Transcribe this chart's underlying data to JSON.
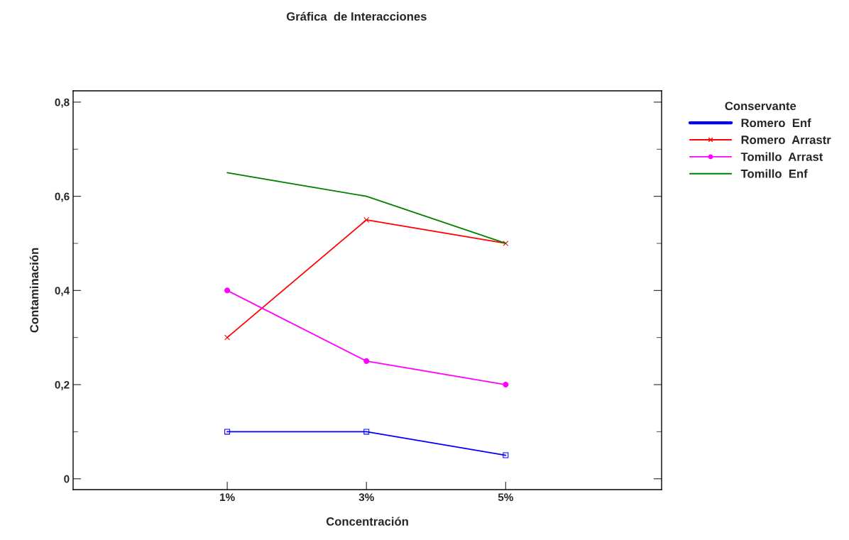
{
  "chart_data": {
    "type": "line",
    "title": "Gráfica  de Interacciones",
    "xlabel": "Concentración",
    "ylabel": "Contaminación",
    "legend_title": "Conservante",
    "categories": [
      "1%",
      "3%",
      "5%"
    ],
    "series": [
      {
        "name": "Romero  Enf",
        "color": "#0000ff",
        "values": [
          0.1,
          0.1,
          0.05
        ],
        "marker": "square"
      },
      {
        "name": "Romero  Arrastr",
        "color": "#ff0000",
        "values": [
          0.3,
          0.55,
          0.5
        ],
        "marker": "cross"
      },
      {
        "name": "Tomillo  Arrast",
        "color": "#ff00ff",
        "values": [
          0.4,
          0.25,
          0.2
        ],
        "marker": "circle"
      },
      {
        "name": "Tomillo  Enf",
        "color": "#008000",
        "values": [
          0.65,
          0.6,
          0.5
        ],
        "marker": "none"
      }
    ],
    "ylim": [
      -0.023,
      0.824
    ],
    "yticks": [
      {
        "value": 0,
        "label": "0"
      },
      {
        "value": 0.2,
        "label": "0,2"
      },
      {
        "value": 0.4,
        "label": "0,4"
      },
      {
        "value": 0.6,
        "label": "0,6"
      },
      {
        "value": 0.8,
        "label": "0,8"
      }
    ],
    "grid": false,
    "legend": "right",
    "line_style": "solid"
  }
}
